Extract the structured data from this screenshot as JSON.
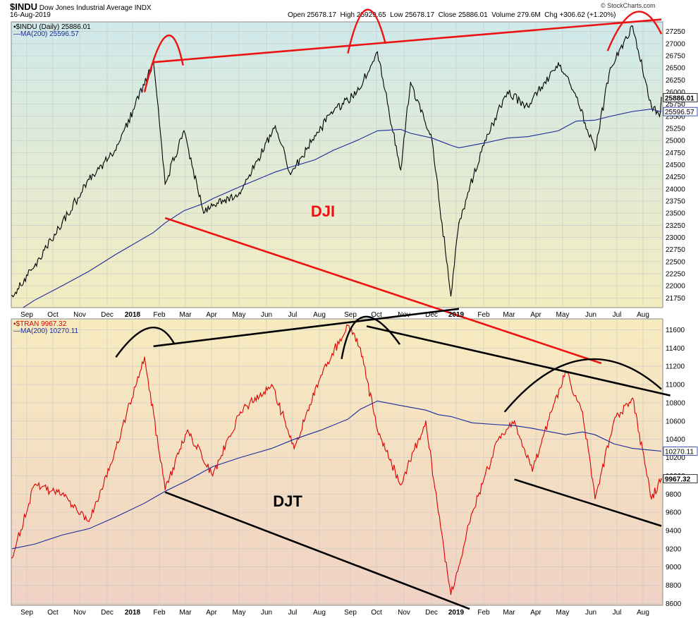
{
  "header": {
    "symbol": "$INDU",
    "name": "Dow Jones Industrial Average",
    "exchange": "INDX",
    "date": "16-Aug-2019",
    "open_label": "Open",
    "open": "25678.17",
    "high_label": "High",
    "high": "25929.65",
    "low_label": "Low",
    "low": "25678.17",
    "close_label": "Close",
    "close": "25886.01",
    "volume_label": "Volume",
    "volume": "279.6M",
    "chg_label": "Chg",
    "chg": "+306.62 (+1.20%)",
    "source": "© StockCharts.com"
  },
  "colors": {
    "dji_price": "#000000",
    "djt_price": "#dd0000",
    "ma": "#1a2a9a",
    "dji_trend": "#ee1111",
    "djt_trend": "#000000",
    "grid": "#c8c8c8"
  },
  "chart_data": [
    {
      "type": "line",
      "panel": "top",
      "legend": [
        "$INDU (Daily) 25886.01",
        "MA(200) 25596.57"
      ],
      "annotation": "DJI",
      "last_value_label": "25886.01",
      "ma_value_label": "25596.57",
      "ylim": [
        21550,
        27450
      ],
      "y_ticks": [
        21750,
        22000,
        22250,
        22500,
        22750,
        23000,
        23250,
        23500,
        23750,
        24000,
        24250,
        24500,
        24750,
        25000,
        25250,
        25500,
        25750,
        26000,
        26250,
        26500,
        26750,
        27000,
        27250
      ],
      "x_ticks": [
        "Sep",
        "Oct",
        "Nov",
        "Dec",
        "2018",
        "Feb",
        "Mar",
        "Apr",
        "May",
        "Jun",
        "Jul",
        "Aug",
        "Sep",
        "Oct",
        "Nov",
        "Dec",
        "2019",
        "Feb",
        "Mar",
        "Apr",
        "May",
        "Jun",
        "Jul",
        "Aug"
      ],
      "x_dates": [
        "2017-08-21",
        "2017-09-15",
        "2017-10-16",
        "2017-11-15",
        "2017-12-15",
        "2018-01-26",
        "2018-02-08",
        "2018-03-01",
        "2018-03-23",
        "2018-04-02",
        "2018-05-03",
        "2018-06-11",
        "2018-06-28",
        "2018-07-25",
        "2018-08-15",
        "2018-09-10",
        "2018-10-03",
        "2018-10-29",
        "2018-11-09",
        "2018-12-03",
        "2018-12-24",
        "2019-01-02",
        "2019-01-31",
        "2019-02-25",
        "2019-03-20",
        "2019-04-23",
        "2019-05-13",
        "2019-06-03",
        "2019-06-20",
        "2019-07-15",
        "2019-08-05",
        "2019-08-14",
        "2019-08-16"
      ],
      "price": [
        21800,
        22400,
        23300,
        24200,
        24800,
        26617,
        24100,
        25200,
        23500,
        23650,
        23900,
        25300,
        24300,
        25100,
        25600,
        26000,
        26828,
        24400,
        26200,
        25000,
        21792,
        23300,
        25000,
        26000,
        25700,
        26600,
        25900,
        24800,
        26500,
        27359,
        25700,
        25500,
        25886
      ],
      "ma200": [
        21400,
        21700,
        22000,
        22300,
        22650,
        23100,
        23300,
        23550,
        23700,
        23800,
        24050,
        24350,
        24450,
        24600,
        24800,
        25000,
        25200,
        25230,
        25150,
        25050,
        24900,
        24850,
        24950,
        25050,
        25080,
        25200,
        25400,
        25420,
        25500,
        25600,
        25650,
        25600,
        25597
      ],
      "trendlines": [
        {
          "from": [
            "2018-01-26",
            26617
          ],
          "to": [
            "2019-08-16",
            27500
          ]
        },
        {
          "from": [
            "2018-02-08",
            23400
          ],
          "to": [
            "2019-06-10",
            20400
          ]
        }
      ],
      "arcs": [
        {
          "from": [
            "2018-01-16",
            26000
          ],
          "peak": [
            "2018-02-09",
            27150
          ],
          "to": [
            "2018-02-28",
            26550
          ]
        },
        {
          "from": [
            "2018-08-31",
            26800
          ],
          "peak": [
            "2018-09-21",
            27700
          ],
          "to": [
            "2018-10-12",
            27000
          ]
        },
        {
          "from": [
            "2019-06-17",
            26850
          ],
          "peak": [
            "2019-07-18",
            27650
          ],
          "to": [
            "2019-08-16",
            27200
          ]
        }
      ]
    },
    {
      "type": "line",
      "panel": "bottom",
      "legend": [
        "$TRAN 9967.32",
        "MA(200) 10270.11"
      ],
      "annotation": "DJT",
      "last_value_label": "9967.32",
      "ma_value_label": "10270.11",
      "ylim": [
        8580,
        11720
      ],
      "y_ticks": [
        8600,
        8800,
        9000,
        9200,
        9400,
        9600,
        9800,
        10000,
        10200,
        10400,
        10600,
        10800,
        11000,
        11200,
        11400,
        11600
      ],
      "x_ticks": [
        "Sep",
        "Oct",
        "Nov",
        "Dec",
        "2018",
        "Feb",
        "Mar",
        "Apr",
        "May",
        "Jun",
        "Jul",
        "Aug",
        "Sep",
        "Oct",
        "Nov",
        "Dec",
        "2019",
        "Feb",
        "Mar",
        "Apr",
        "May",
        "Jun",
        "Jul",
        "Aug"
      ],
      "x_dates": [
        "2017-08-21",
        "2017-09-15",
        "2017-10-16",
        "2017-11-15",
        "2017-12-15",
        "2018-01-16",
        "2018-02-08",
        "2018-03-05",
        "2018-04-02",
        "2018-05-03",
        "2018-06-07",
        "2018-07-02",
        "2018-08-01",
        "2018-08-31",
        "2018-09-14",
        "2018-10-03",
        "2018-10-29",
        "2018-11-26",
        "2018-12-10",
        "2018-12-24",
        "2019-01-17",
        "2019-02-15",
        "2019-03-05",
        "2019-03-25",
        "2019-04-15",
        "2019-05-01",
        "2019-05-20",
        "2019-06-03",
        "2019-06-24",
        "2019-07-15",
        "2019-08-05",
        "2019-08-16"
      ],
      "price": [
        9100,
        9900,
        9800,
        9500,
        10300,
        11300,
        9850,
        10500,
        10000,
        10700,
        11000,
        10300,
        11100,
        11650,
        11400,
        10500,
        9900,
        10600,
        9600,
        8700,
        9600,
        10400,
        10600,
        10050,
        10700,
        11150,
        10700,
        9750,
        10600,
        10850,
        9750,
        9967
      ],
      "ma200": [
        9200,
        9250,
        9350,
        9420,
        9550,
        9700,
        9830,
        9950,
        10100,
        10200,
        10300,
        10400,
        10500,
        10620,
        10730,
        10820,
        10770,
        10720,
        10670,
        10650,
        10580,
        10560,
        10550,
        10520,
        10480,
        10450,
        10480,
        10450,
        10350,
        10300,
        10280,
        10270
      ],
      "trendlines": [
        {
          "from": [
            "2018-01-26",
            11420
          ],
          "to": [
            "2019-01-02",
            11830
          ]
        },
        {
          "from": [
            "2018-09-21",
            11640
          ],
          "to": [
            "2019-08-26",
            10880
          ]
        },
        {
          "from": [
            "2018-02-08",
            9820
          ],
          "to": [
            "2019-01-14",
            8540
          ]
        },
        {
          "from": [
            "2019-03-05",
            9960
          ],
          "to": [
            "2019-08-16",
            9450
          ]
        }
      ],
      "arcs": [
        {
          "from": [
            "2017-12-15",
            11300
          ],
          "peak": [
            "2018-01-21",
            11620
          ],
          "to": [
            "2018-02-18",
            11450
          ]
        },
        {
          "from": [
            "2018-08-24",
            11280
          ],
          "peak": [
            "2018-09-17",
            11740
          ],
          "to": [
            "2018-10-28",
            11440
          ]
        },
        {
          "from": [
            "2019-02-22",
            10700
          ],
          "peak": [
            "2019-05-20",
            11270
          ],
          "to": [
            "2019-08-16",
            10950
          ]
        }
      ]
    }
  ]
}
